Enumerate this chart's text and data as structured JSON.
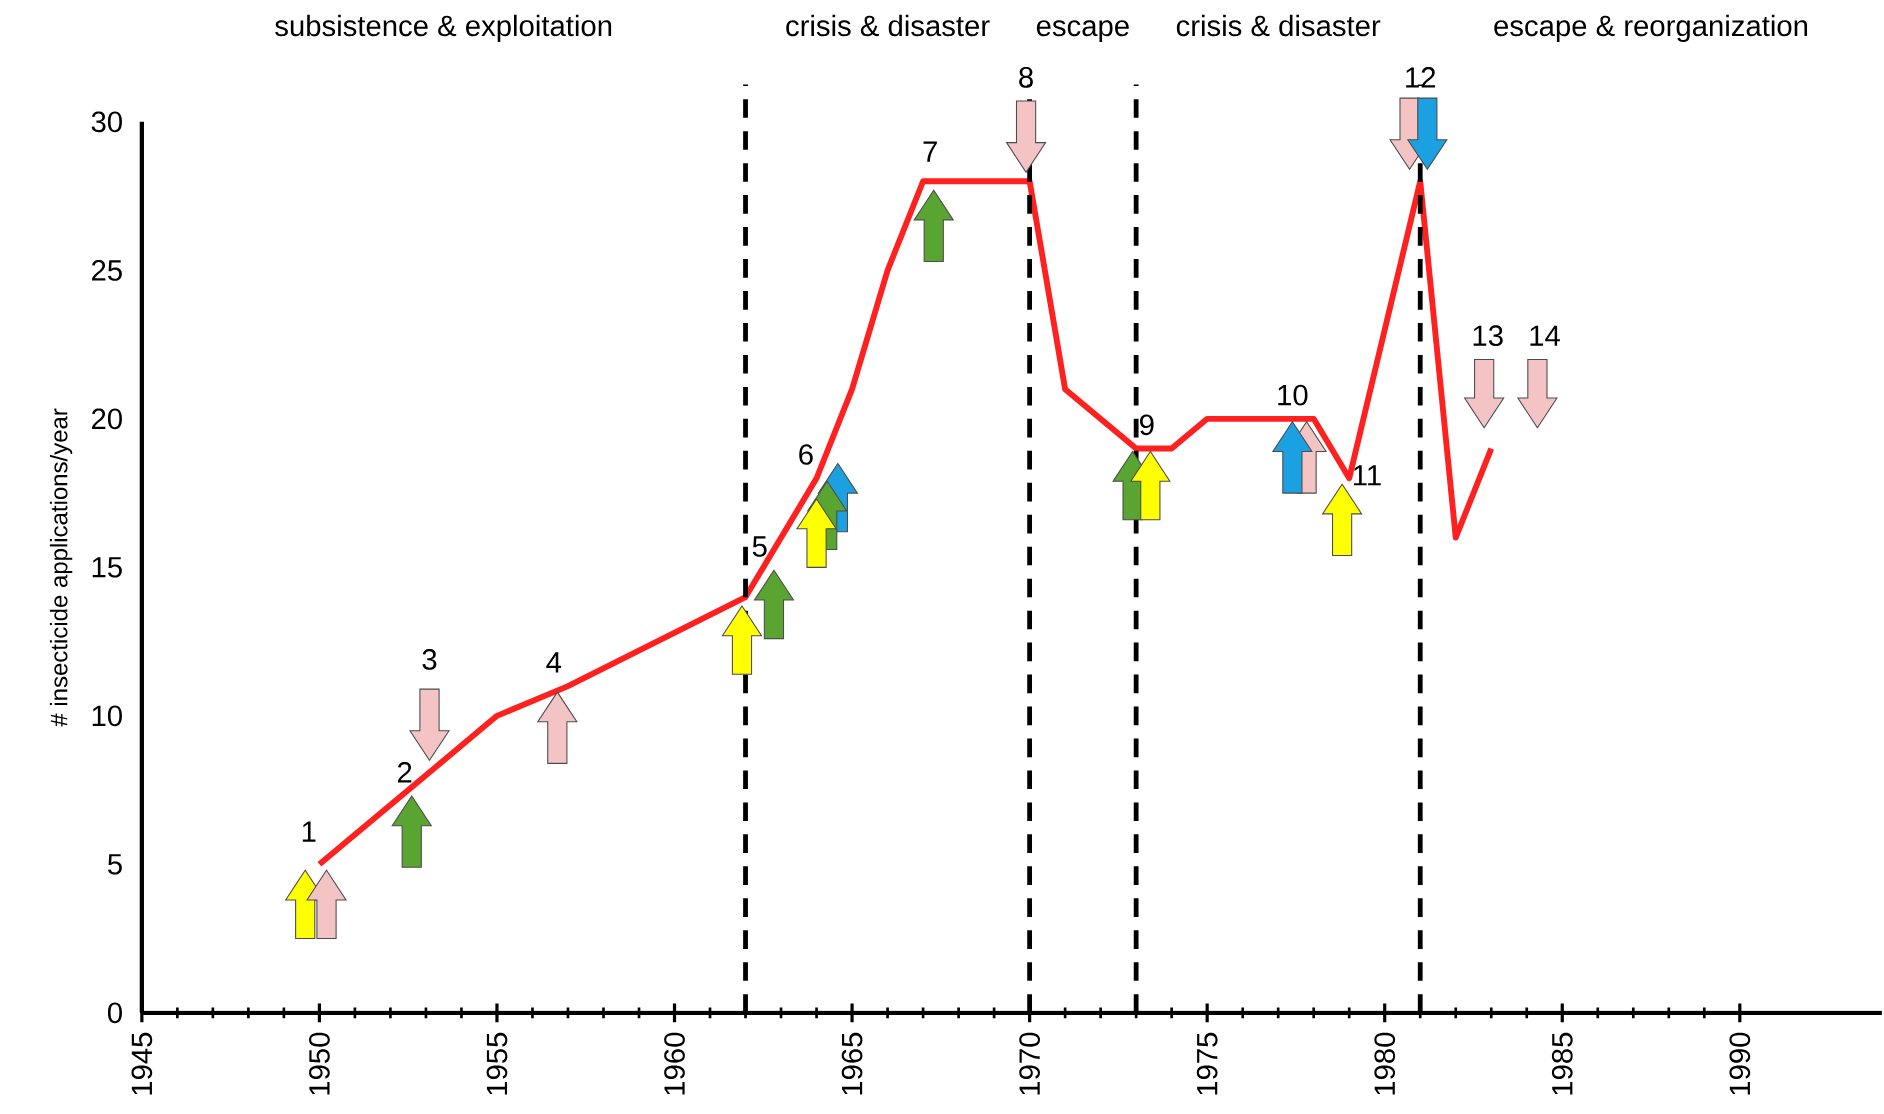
{
  "chart_data": {
    "type": "line",
    "ylabel": "# insecticide applications/year",
    "x": [
      1950,
      1953,
      1955,
      1957,
      1962,
      1964,
      1965,
      1966,
      1967,
      1970,
      1971,
      1973,
      1974,
      1975,
      1978,
      1979,
      1981,
      1982,
      1983
    ],
    "series": [
      {
        "color": "#ff2020",
        "values": [
          5,
          8,
          10,
          11,
          14,
          18,
          21,
          25,
          28,
          28,
          21,
          19,
          19,
          20,
          20,
          18,
          28,
          16,
          19
        ]
      }
    ],
    "xlim": [
      1945,
      1994
    ],
    "xticks": [
      1945,
      1950,
      1955,
      1960,
      1965,
      1970,
      1975,
      1980,
      1985,
      1990
    ],
    "ylim": [
      0,
      30
    ],
    "yticks": [
      0,
      5,
      10,
      15,
      20,
      25,
      30
    ],
    "grid": false,
    "marker": "none",
    "line_style": "solid",
    "ref_lines": [
      {
        "axis": "x",
        "value": 1962,
        "line_style": "dashed",
        "color": "#000000"
      },
      {
        "axis": "x",
        "value": 1970,
        "line_style": "dashed",
        "color": "#000000"
      },
      {
        "axis": "x",
        "value": 1973,
        "line_style": "dashed",
        "color": "#000000"
      },
      {
        "axis": "x",
        "value": 1981,
        "line_style": "dashed",
        "color": "#000000"
      }
    ],
    "annotations": [
      "subsistence & exploitation",
      "crisis & disaster",
      "escape",
      "crisis & disaster",
      "escape & reorganization",
      "1",
      "2",
      "3",
      "4",
      "5",
      "6",
      "7",
      "8",
      "9",
      "10",
      "11",
      "12",
      "13",
      "14"
    ]
  }
}
